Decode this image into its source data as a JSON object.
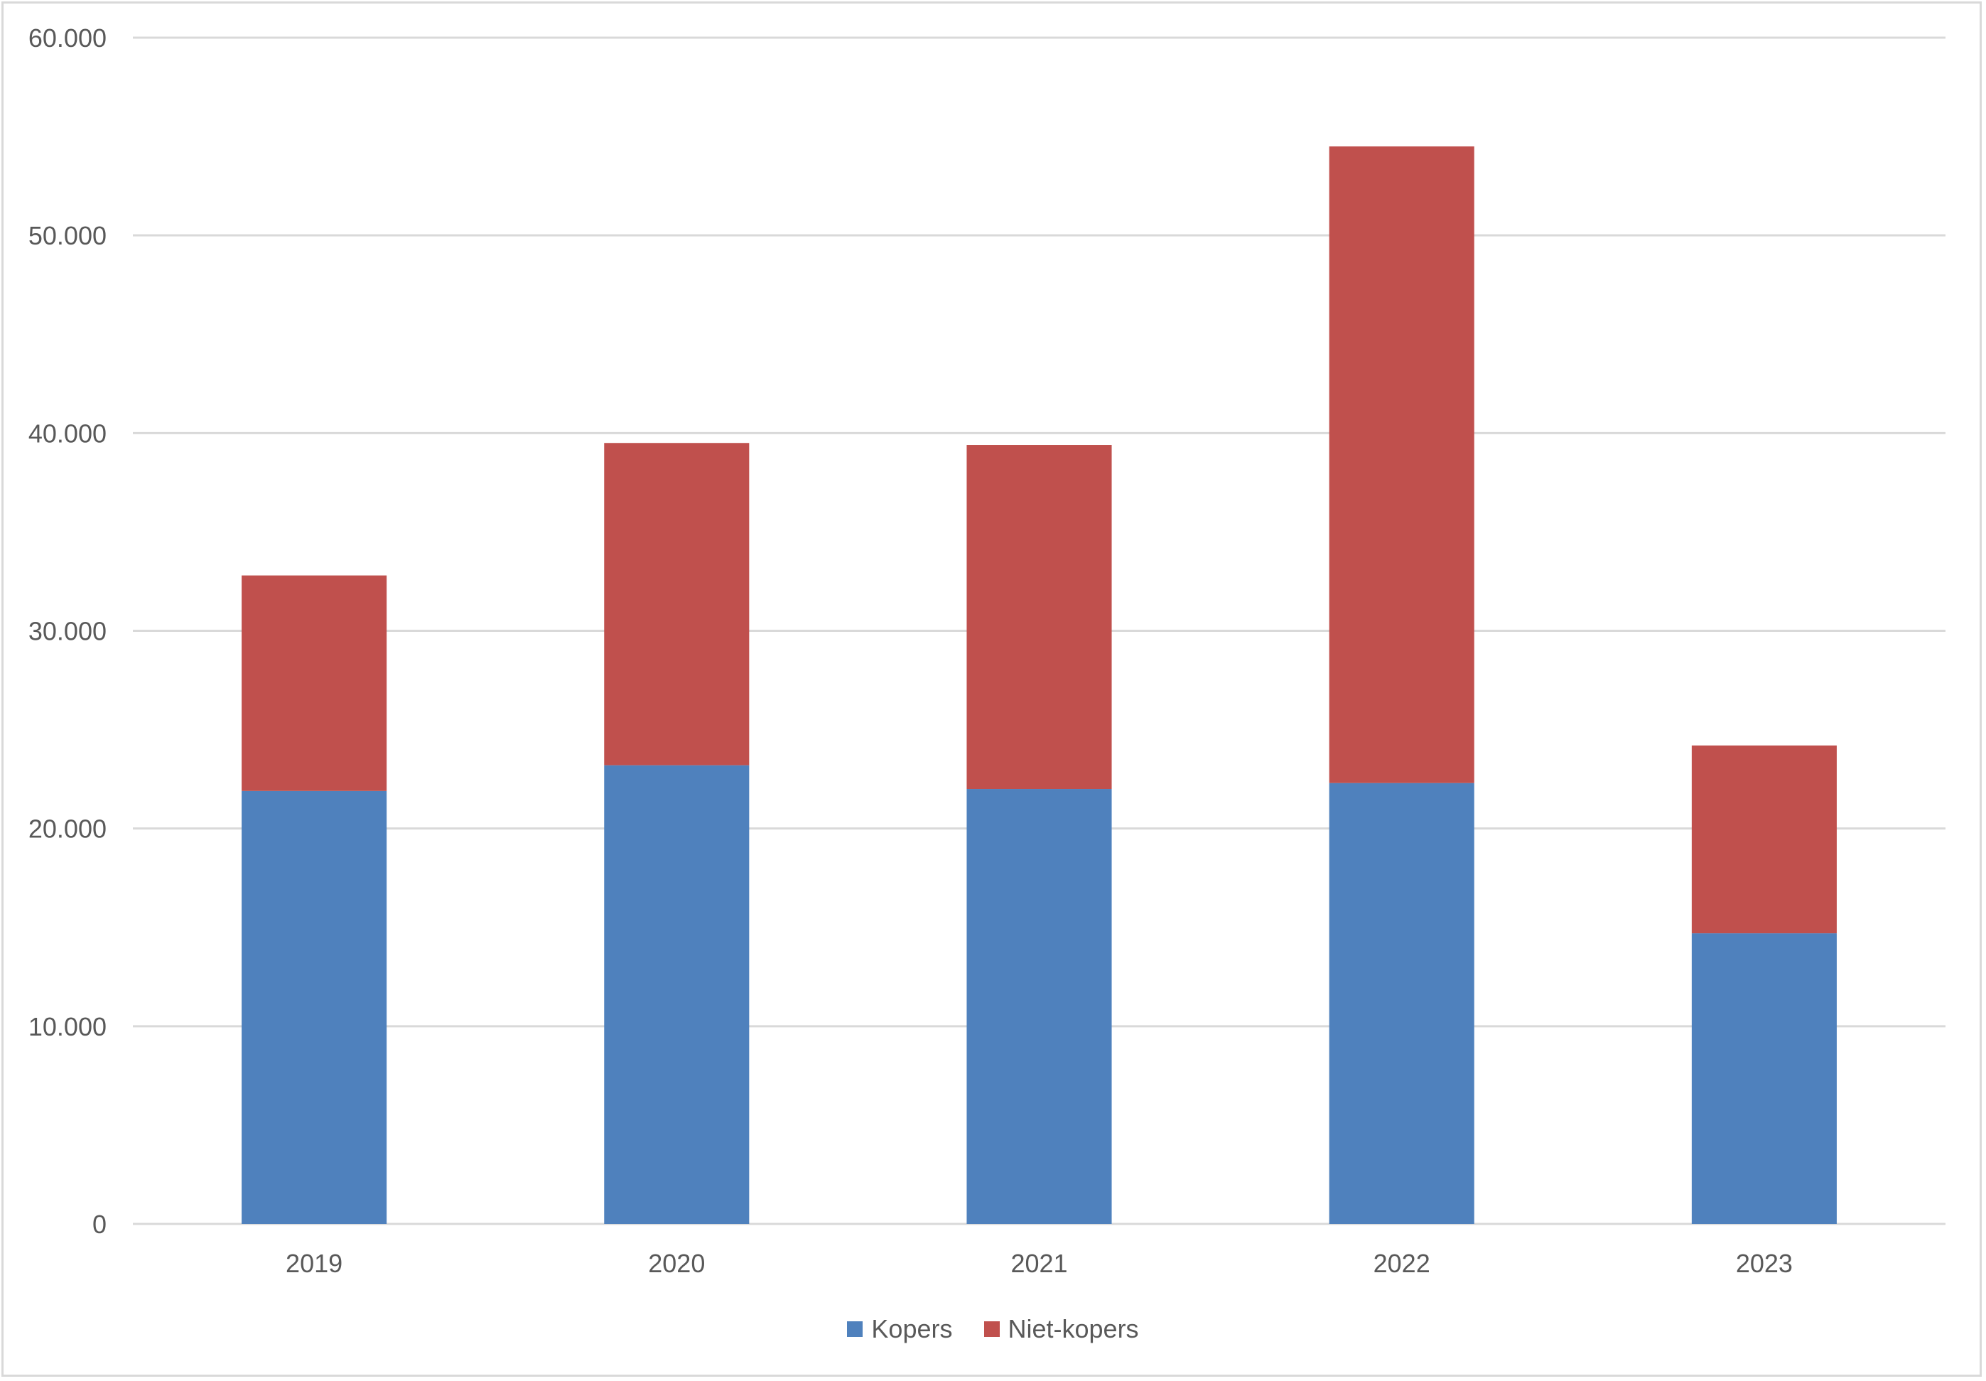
{
  "chart_data": {
    "type": "bar",
    "stacked": true,
    "title": "",
    "xlabel": "",
    "ylabel": "",
    "categories": [
      "2019",
      "2020",
      "2021",
      "2022",
      "2023"
    ],
    "series": [
      {
        "name": "Kopers",
        "color": "#4f81bd",
        "values": [
          21900,
          23200,
          22000,
          22300,
          14700
        ]
      },
      {
        "name": "Niet-kopers",
        "color": "#c0504d",
        "values": [
          10900,
          16300,
          17400,
          32200,
          9500
        ]
      }
    ],
    "ylim": [
      0,
      60000
    ],
    "yticks": [
      0,
      10000,
      20000,
      30000,
      40000,
      50000,
      60000
    ],
    "ytick_labels": [
      "0",
      "10.000",
      "20.000",
      "30.000",
      "40.000",
      "50.000",
      "60.000"
    ],
    "grid": true,
    "legend_position": "bottom"
  }
}
